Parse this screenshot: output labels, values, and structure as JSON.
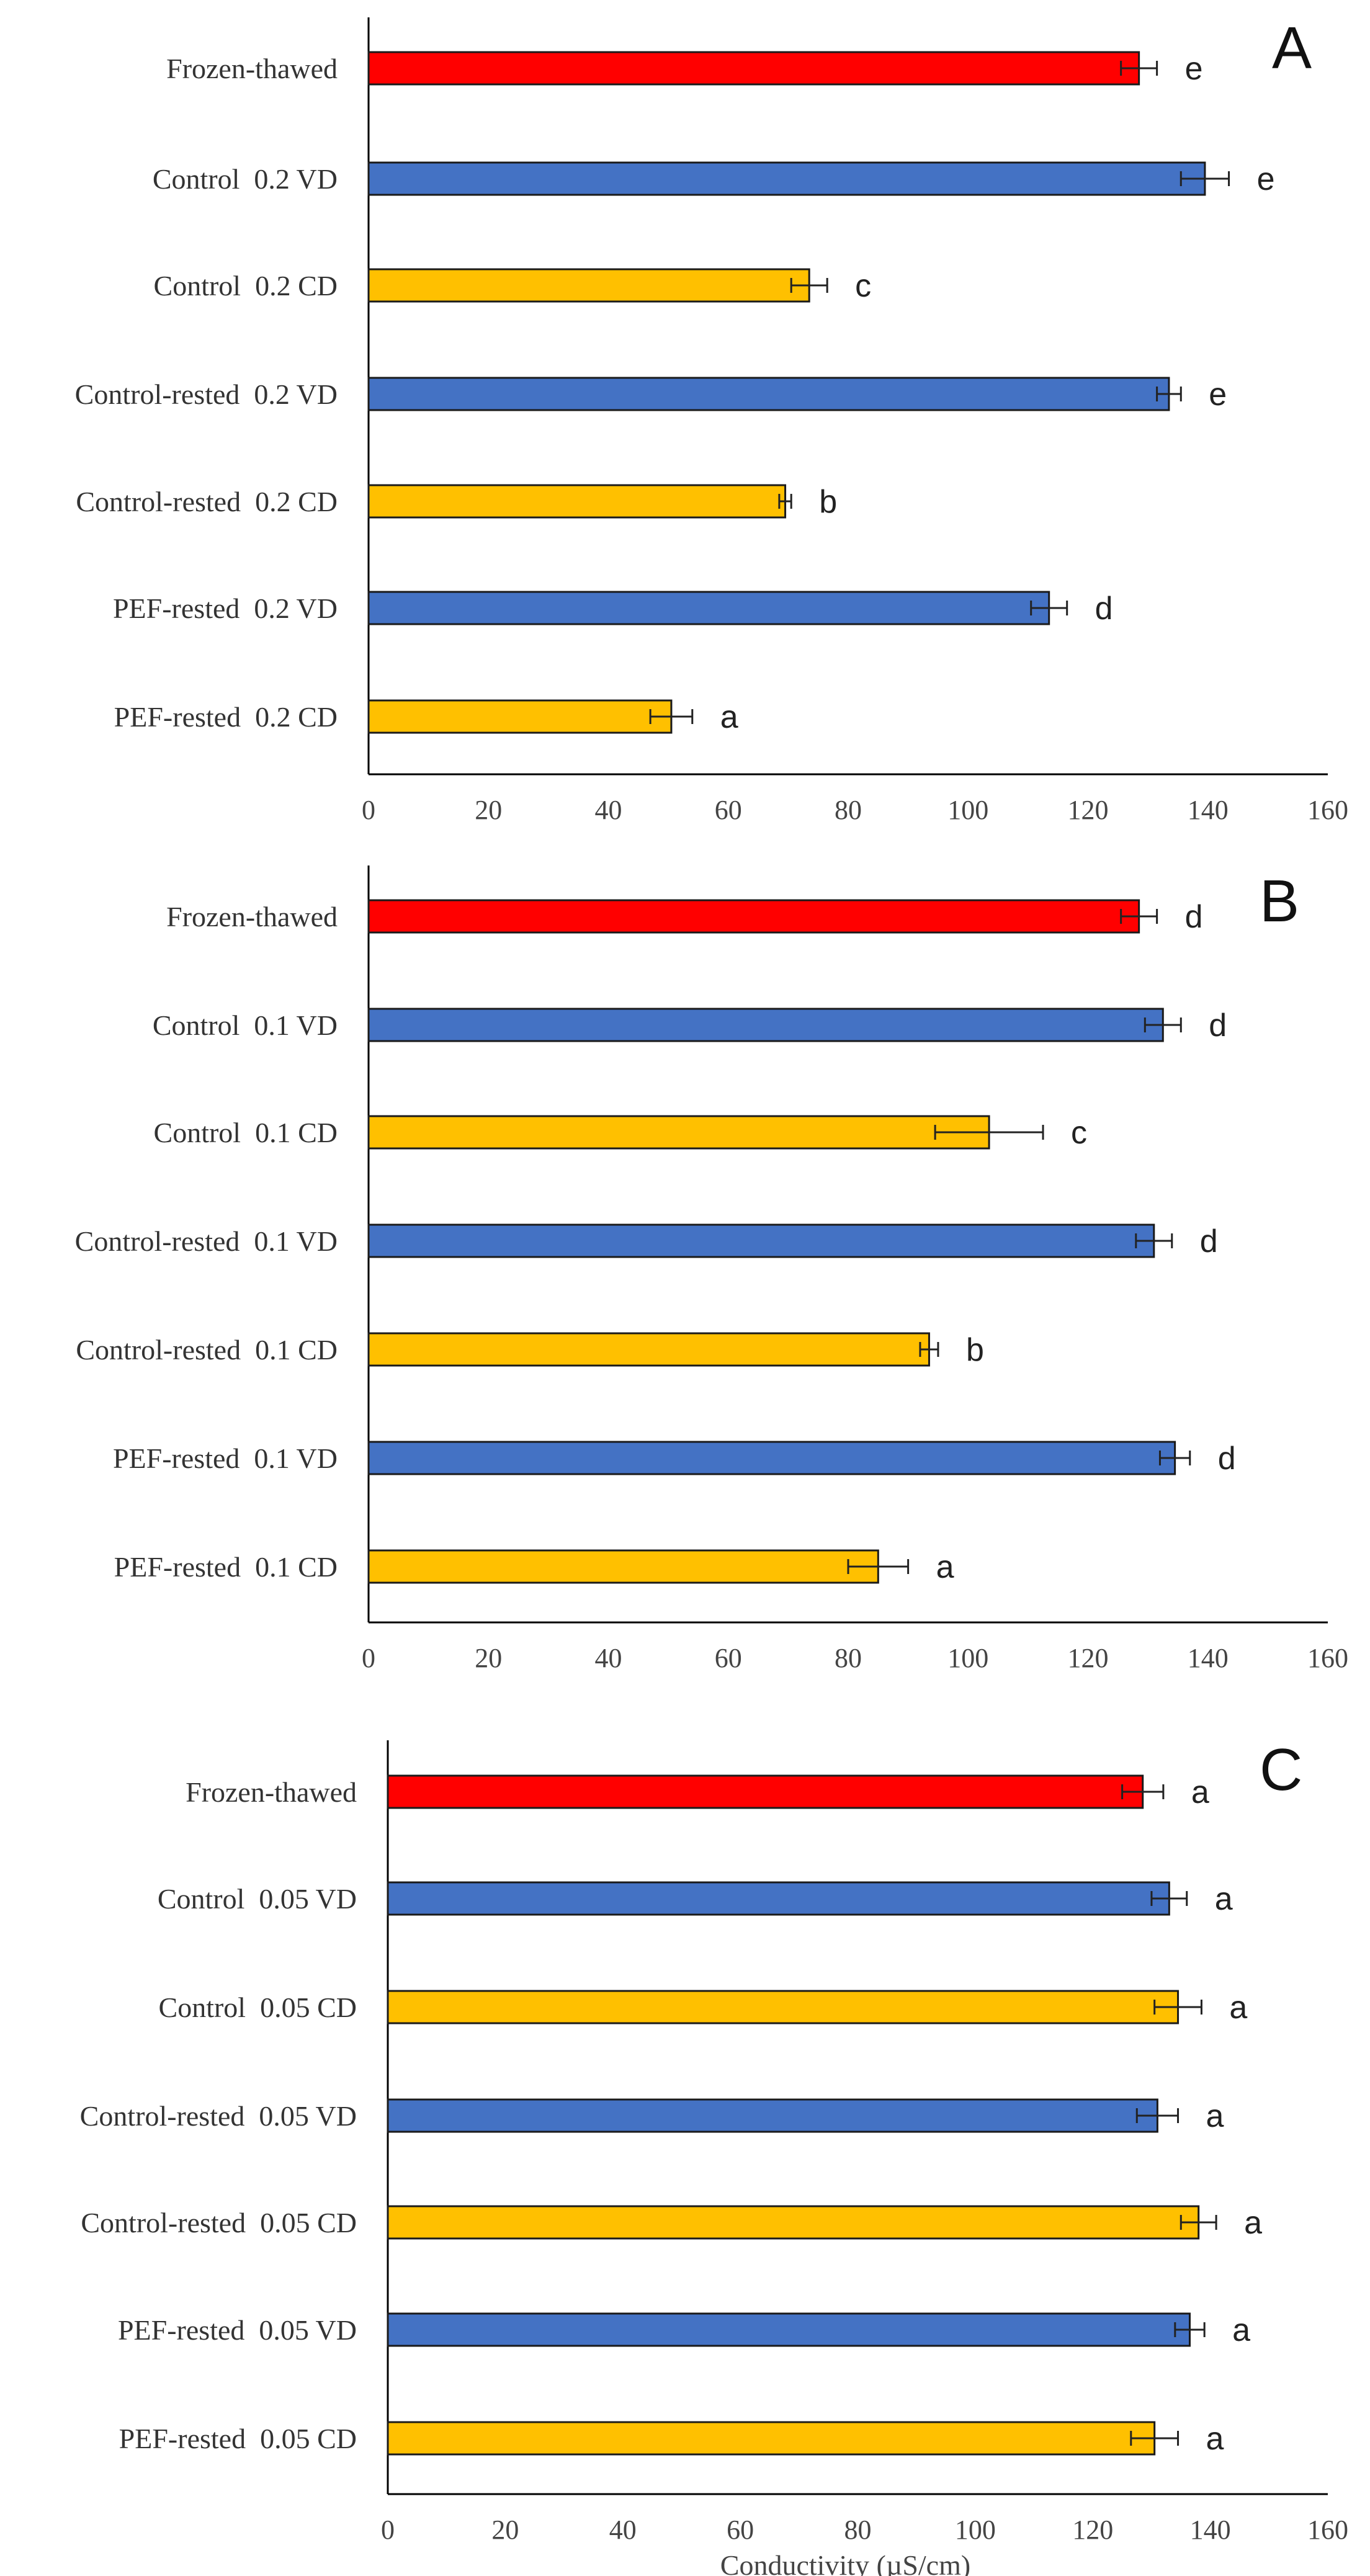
{
  "colors": {
    "Frozen-thawed": "#ff0000",
    "VD": "#4472c4",
    "CD": "#ffc000"
  },
  "chart_data": [
    {
      "type": "bar",
      "orientation": "horizontal",
      "panel_letter": "A",
      "categories": [
        "Frozen-thawed",
        "Control  0.2 VD",
        "Control  0.2 CD",
        "Control-rested  0.2 VD",
        "Control-rested  0.2 CD",
        "PEF-rested  0.2 VD",
        "PEF-rested  0.2 CD"
      ],
      "values": [
        128.5,
        139.5,
        73.5,
        133.5,
        69.5,
        113.5,
        50.5
      ],
      "errors": [
        3,
        4,
        3,
        2,
        1,
        3,
        3.5
      ],
      "significance": [
        "e",
        "e",
        "c",
        "e",
        "b",
        "d",
        "a"
      ],
      "bar_colors": [
        "#ff0000",
        "#4472c4",
        "#ffc000",
        "#4472c4",
        "#ffc000",
        "#4472c4",
        "#ffc000"
      ],
      "xlim": [
        0,
        160
      ],
      "xticks": [
        "0",
        "20",
        "40",
        "60",
        "80",
        "100",
        "120",
        "140",
        "160"
      ],
      "xlabel": ""
    },
    {
      "type": "bar",
      "orientation": "horizontal",
      "panel_letter": "B",
      "categories": [
        "Frozen-thawed",
        "Control  0.1 VD",
        "Control  0.1 CD",
        "Control-rested  0.1 VD",
        "Control-rested  0.1 CD",
        "PEF-rested  0.1 VD",
        "PEF-rested  0.1 CD"
      ],
      "values": [
        128.5,
        132.5,
        103.5,
        131,
        93.5,
        134.5,
        85
      ],
      "errors": [
        3,
        3,
        9,
        3,
        1.5,
        2.5,
        5
      ],
      "significance": [
        "d",
        "d",
        "c",
        "d",
        "b",
        "d",
        "a"
      ],
      "bar_colors": [
        "#ff0000",
        "#4472c4",
        "#ffc000",
        "#4472c4",
        "#ffc000",
        "#4472c4",
        "#ffc000"
      ],
      "xlim": [
        0,
        160
      ],
      "xticks": [
        "0",
        "20",
        "40",
        "60",
        "80",
        "100",
        "120",
        "140",
        "160"
      ],
      "xlabel": ""
    },
    {
      "type": "bar",
      "orientation": "horizontal",
      "panel_letter": "C",
      "categories": [
        "Frozen-thawed",
        "Control  0.05 VD",
        "Control  0.05 CD",
        "Control-rested  0.05 VD",
        "Control-rested  0.05 CD",
        "PEF-rested  0.05 VD",
        "PEF-rested  0.05 CD"
      ],
      "values": [
        128.5,
        133,
        134.5,
        131,
        138,
        136.5,
        130.5
      ],
      "errors": [
        3.5,
        3,
        4,
        3.5,
        3,
        2.5,
        4
      ],
      "significance": [
        "a",
        "a",
        "a",
        "a",
        "a",
        "a",
        "a"
      ],
      "bar_colors": [
        "#ff0000",
        "#4472c4",
        "#ffc000",
        "#4472c4",
        "#ffc000",
        "#4472c4",
        "#ffc000"
      ],
      "xlim": [
        0,
        160
      ],
      "xticks": [
        "0",
        "20",
        "40",
        "60",
        "80",
        "100",
        "120",
        "140",
        "160"
      ],
      "xlabel": "Conductivity (µS/cm)"
    }
  ]
}
